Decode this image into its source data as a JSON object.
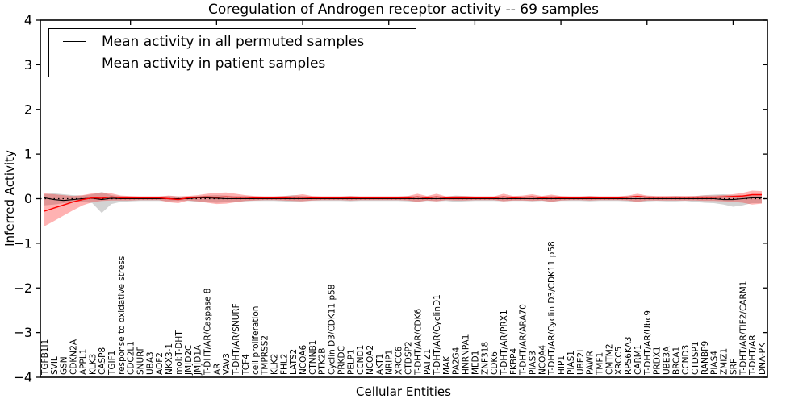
{
  "title": "Coregulation of Androgen receptor activity -- 69 samples",
  "legend": {
    "permuted": "Mean activity in all permuted samples",
    "patient": "Mean activity in patient samples"
  },
  "colors": {
    "permuted_line": "#000000",
    "patient_line": "#ff0000",
    "permuted_band": "#808080",
    "patient_band": "#ff0000",
    "axis": "#000000"
  },
  "chart_data": {
    "type": "line",
    "title": "Coregulation of Androgen receptor activity -- 69 samples",
    "xlabel": "Cellular Entities",
    "ylabel": "Inferred Activity",
    "ylim": [
      -4,
      4
    ],
    "yticks": [
      4,
      3,
      2,
      1,
      0,
      -1,
      -2,
      -3,
      -4
    ],
    "grid": false,
    "legend_position": "upper left",
    "zero_line": {
      "y": 0,
      "style": "dotted",
      "color": "#000000"
    },
    "top_tick_indices": [
      9,
      18,
      27,
      36,
      45,
      54,
      63,
      72
    ],
    "categories": [
      "TGFB1I1",
      "SVIL",
      "GSN",
      "CDKN2A",
      "APPL1",
      "KLK3",
      "CASP8",
      "TGIF1",
      "response to oxidative stress",
      "CDC2L1",
      "SNURF",
      "UBA3",
      "AOF2",
      "NKX3-1",
      "mol:T-DHT",
      "JMJD2C",
      "JMJD1A",
      "T-DHT/AR/Caspase 8",
      "AR",
      "VAV3",
      "T-DHT/AR/SNURF",
      "TCF4",
      "cell proliferation",
      "TMPRSS2",
      "KLK2",
      "FHL2",
      "LATS2",
      "NCOA6",
      "CTNNB1",
      "PTK2B",
      "Cyclin D3/CDK11 p58",
      "PRKDC",
      "PELP1",
      "CCND1",
      "NCOA2",
      "AKT1",
      "NRIP1",
      "XRCC6",
      "CTDSP2",
      "T-DHT/AR/CDK6",
      "PATZ1",
      "T-DHT/AR/CyclinD1",
      "MAK",
      "PA2G4",
      "HNRNPA1",
      "MED1",
      "ZNF318",
      "CDK6",
      "T-DHT/AR/PRX1",
      "FKBP4",
      "T-DHT/AR/ARA70",
      "PIAS3",
      "NCOA4",
      "T-DHT/AR/Cyclin D3/CDK11 p58",
      "HIP1",
      "PIAS1",
      "UBE2I",
      "PAWR",
      "TMF1",
      "CMTM2",
      "XRCC5",
      "RPS6KA3",
      "CARM1",
      "T-DHT/AR/Ubc9",
      "PRDX1",
      "UBE3A",
      "BRCA1",
      "CCND3",
      "CTDSP1",
      "RANBP9",
      "PIAS4",
      "ZMIZ1",
      "SRF",
      "T-DHT/AR/TIF2/CARM1",
      "T-DHT/AR",
      "DNA-PK"
    ],
    "series": [
      {
        "name": "Mean activity in all permuted samples",
        "color": "#000000",
        "values": [
          0.02,
          -0.02,
          -0.04,
          -0.02,
          0,
          0.01,
          -0.02,
          0.01,
          0,
          0,
          0,
          0,
          0,
          0,
          0,
          0,
          0.02,
          0.02,
          0.01,
          0,
          0,
          0,
          0,
          0,
          0,
          0,
          0,
          0,
          0,
          0,
          0,
          0,
          0,
          0,
          0,
          0,
          0,
          0,
          0,
          0,
          0,
          0,
          0,
          0,
          0,
          0,
          0,
          0,
          0,
          0,
          0,
          0,
          0,
          0,
          0,
          0,
          0,
          0,
          0,
          0,
          0,
          0,
          0,
          0,
          0,
          0,
          0,
          0,
          0,
          0,
          0,
          -0.02,
          -0.02,
          0,
          0.02,
          0.02
        ],
        "band_upper": [
          0.1,
          0.12,
          0.1,
          0.08,
          0.07,
          0.1,
          0.15,
          0.08,
          0.06,
          0.05,
          0.05,
          0.05,
          0.05,
          0.06,
          0.05,
          0.05,
          0.06,
          0.07,
          0.08,
          0.07,
          0.06,
          0.06,
          0.05,
          0.05,
          0.05,
          0.06,
          0.08,
          0.06,
          0.05,
          0.05,
          0.05,
          0.05,
          0.06,
          0.05,
          0.05,
          0.05,
          0.05,
          0.05,
          0.06,
          0.06,
          0.05,
          0.06,
          0.05,
          0.07,
          0.06,
          0.05,
          0.05,
          0.05,
          0.06,
          0.05,
          0.05,
          0.06,
          0.05,
          0.06,
          0.05,
          0.05,
          0.05,
          0.06,
          0.05,
          0.05,
          0.05,
          0.06,
          0.07,
          0.06,
          0.05,
          0.05,
          0.06,
          0.05,
          0.06,
          0.08,
          0.09,
          0.1,
          0.08,
          0.08,
          0.08,
          0.1
        ],
        "band_lower": [
          -0.15,
          -0.13,
          -0.1,
          -0.08,
          -0.07,
          -0.1,
          -0.32,
          -0.12,
          -0.07,
          -0.06,
          -0.05,
          -0.05,
          -0.05,
          -0.06,
          -0.05,
          -0.05,
          -0.07,
          -0.08,
          -0.09,
          -0.08,
          -0.07,
          -0.06,
          -0.05,
          -0.05,
          -0.05,
          -0.06,
          -0.08,
          -0.06,
          -0.05,
          -0.05,
          -0.05,
          -0.05,
          -0.06,
          -0.05,
          -0.05,
          -0.05,
          -0.05,
          -0.05,
          -0.06,
          -0.07,
          -0.05,
          -0.06,
          -0.05,
          -0.07,
          -0.06,
          -0.05,
          -0.05,
          -0.05,
          -0.06,
          -0.05,
          -0.05,
          -0.06,
          -0.05,
          -0.07,
          -0.05,
          -0.05,
          -0.05,
          -0.06,
          -0.05,
          -0.05,
          -0.05,
          -0.06,
          -0.08,
          -0.06,
          -0.05,
          -0.06,
          -0.06,
          -0.05,
          -0.07,
          -0.09,
          -0.1,
          -0.13,
          -0.18,
          -0.15,
          -0.1,
          -0.1
        ]
      },
      {
        "name": "Mean activity in patient samples",
        "color": "#ff0000",
        "values": [
          -0.28,
          -0.21,
          -0.14,
          -0.07,
          -0.02,
          0.02,
          0.01,
          0.04,
          0.02,
          0.02,
          0.02,
          0.02,
          0.02,
          0.0,
          -0.02,
          0.02,
          0.03,
          0.04,
          0.03,
          0.04,
          0.03,
          0.03,
          0.02,
          0.02,
          0.02,
          0.02,
          0.03,
          0.03,
          0.02,
          0.02,
          0.02,
          0.02,
          0.02,
          0.02,
          0.02,
          0.02,
          0.02,
          0.02,
          0.02,
          0.04,
          0.02,
          0.04,
          0.02,
          0.02,
          0.02,
          0.02,
          0.02,
          0.02,
          0.04,
          0.02,
          0.03,
          0.04,
          0.02,
          0.03,
          0.02,
          0.02,
          0.02,
          0.02,
          0.02,
          0.02,
          0.02,
          0.03,
          0.05,
          0.03,
          0.03,
          0.03,
          0.03,
          0.03,
          0.03,
          0.03,
          0.03,
          0.04,
          0.05,
          0.06,
          0.09,
          0.09
        ],
        "band_upper": [
          0.12,
          0.1,
          0.08,
          0.06,
          0.08,
          0.12,
          0.14,
          0.12,
          0.07,
          0.06,
          0.05,
          0.05,
          0.05,
          0.07,
          0.05,
          0.06,
          0.08,
          0.11,
          0.13,
          0.14,
          0.11,
          0.08,
          0.06,
          0.05,
          0.05,
          0.06,
          0.07,
          0.1,
          0.06,
          0.05,
          0.05,
          0.05,
          0.06,
          0.05,
          0.05,
          0.05,
          0.05,
          0.05,
          0.06,
          0.11,
          0.06,
          0.11,
          0.05,
          0.06,
          0.06,
          0.05,
          0.05,
          0.05,
          0.11,
          0.06,
          0.07,
          0.1,
          0.06,
          0.09,
          0.06,
          0.05,
          0.05,
          0.06,
          0.05,
          0.05,
          0.05,
          0.07,
          0.11,
          0.07,
          0.06,
          0.06,
          0.06,
          0.06,
          0.06,
          0.07,
          0.07,
          0.08,
          0.1,
          0.13,
          0.18,
          0.17
        ],
        "band_lower": [
          -0.62,
          -0.5,
          -0.38,
          -0.26,
          -0.15,
          -0.08,
          -0.05,
          -0.04,
          -0.04,
          -0.04,
          -0.03,
          -0.03,
          -0.03,
          -0.08,
          -0.1,
          -0.04,
          -0.06,
          -0.09,
          -0.12,
          -0.11,
          -0.08,
          -0.05,
          -0.04,
          -0.03,
          -0.03,
          -0.04,
          -0.05,
          -0.06,
          -0.04,
          -0.03,
          -0.03,
          -0.03,
          -0.04,
          -0.03,
          -0.03,
          -0.03,
          -0.03,
          -0.03,
          -0.04,
          -0.07,
          -0.04,
          -0.06,
          -0.03,
          -0.04,
          -0.04,
          -0.03,
          -0.03,
          -0.03,
          -0.06,
          -0.04,
          -0.04,
          -0.05,
          -0.04,
          -0.07,
          -0.04,
          -0.03,
          -0.03,
          -0.04,
          -0.03,
          -0.03,
          -0.03,
          -0.04,
          -0.07,
          -0.04,
          -0.04,
          -0.04,
          -0.04,
          -0.04,
          -0.04,
          -0.05,
          -0.05,
          -0.06,
          -0.07,
          -0.09,
          -0.13,
          -0.11
        ]
      }
    ]
  }
}
